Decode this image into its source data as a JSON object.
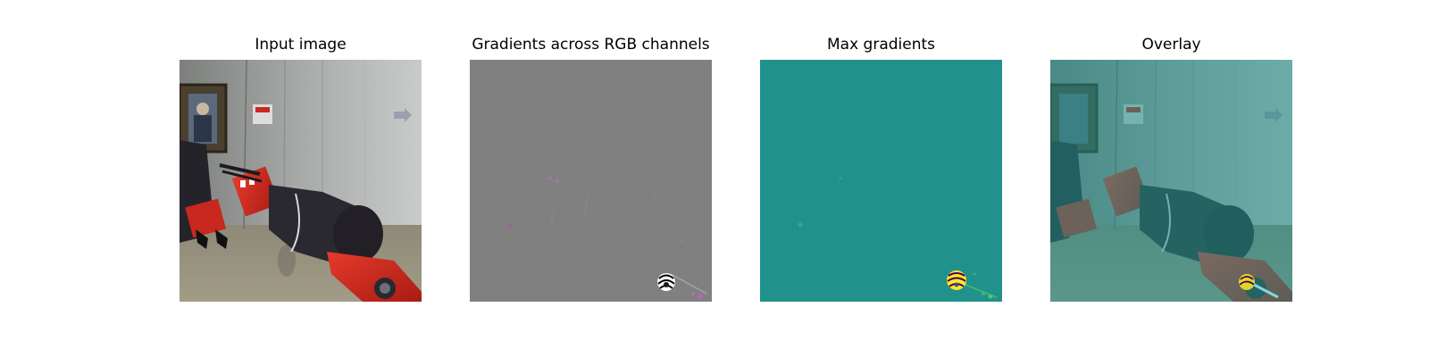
{
  "figure": {
    "panels": [
      {
        "title": "Input image",
        "image": "robot-arm-camera-frame"
      },
      {
        "title": "Gradients across RGB channels",
        "image": "rgb-gradient-map"
      },
      {
        "title": "Max gradients",
        "image": "max-gradient-heatmap"
      },
      {
        "title": "Overlay",
        "image": "gradient-overlay-on-frame"
      }
    ]
  },
  "colors": {
    "figure_background": "#ffffff",
    "gradient_neutral_gray": "#808080",
    "max_gradient_teal": "#21918c",
    "robot_red": "#c8281e",
    "robot_dark": "#2a2830"
  }
}
